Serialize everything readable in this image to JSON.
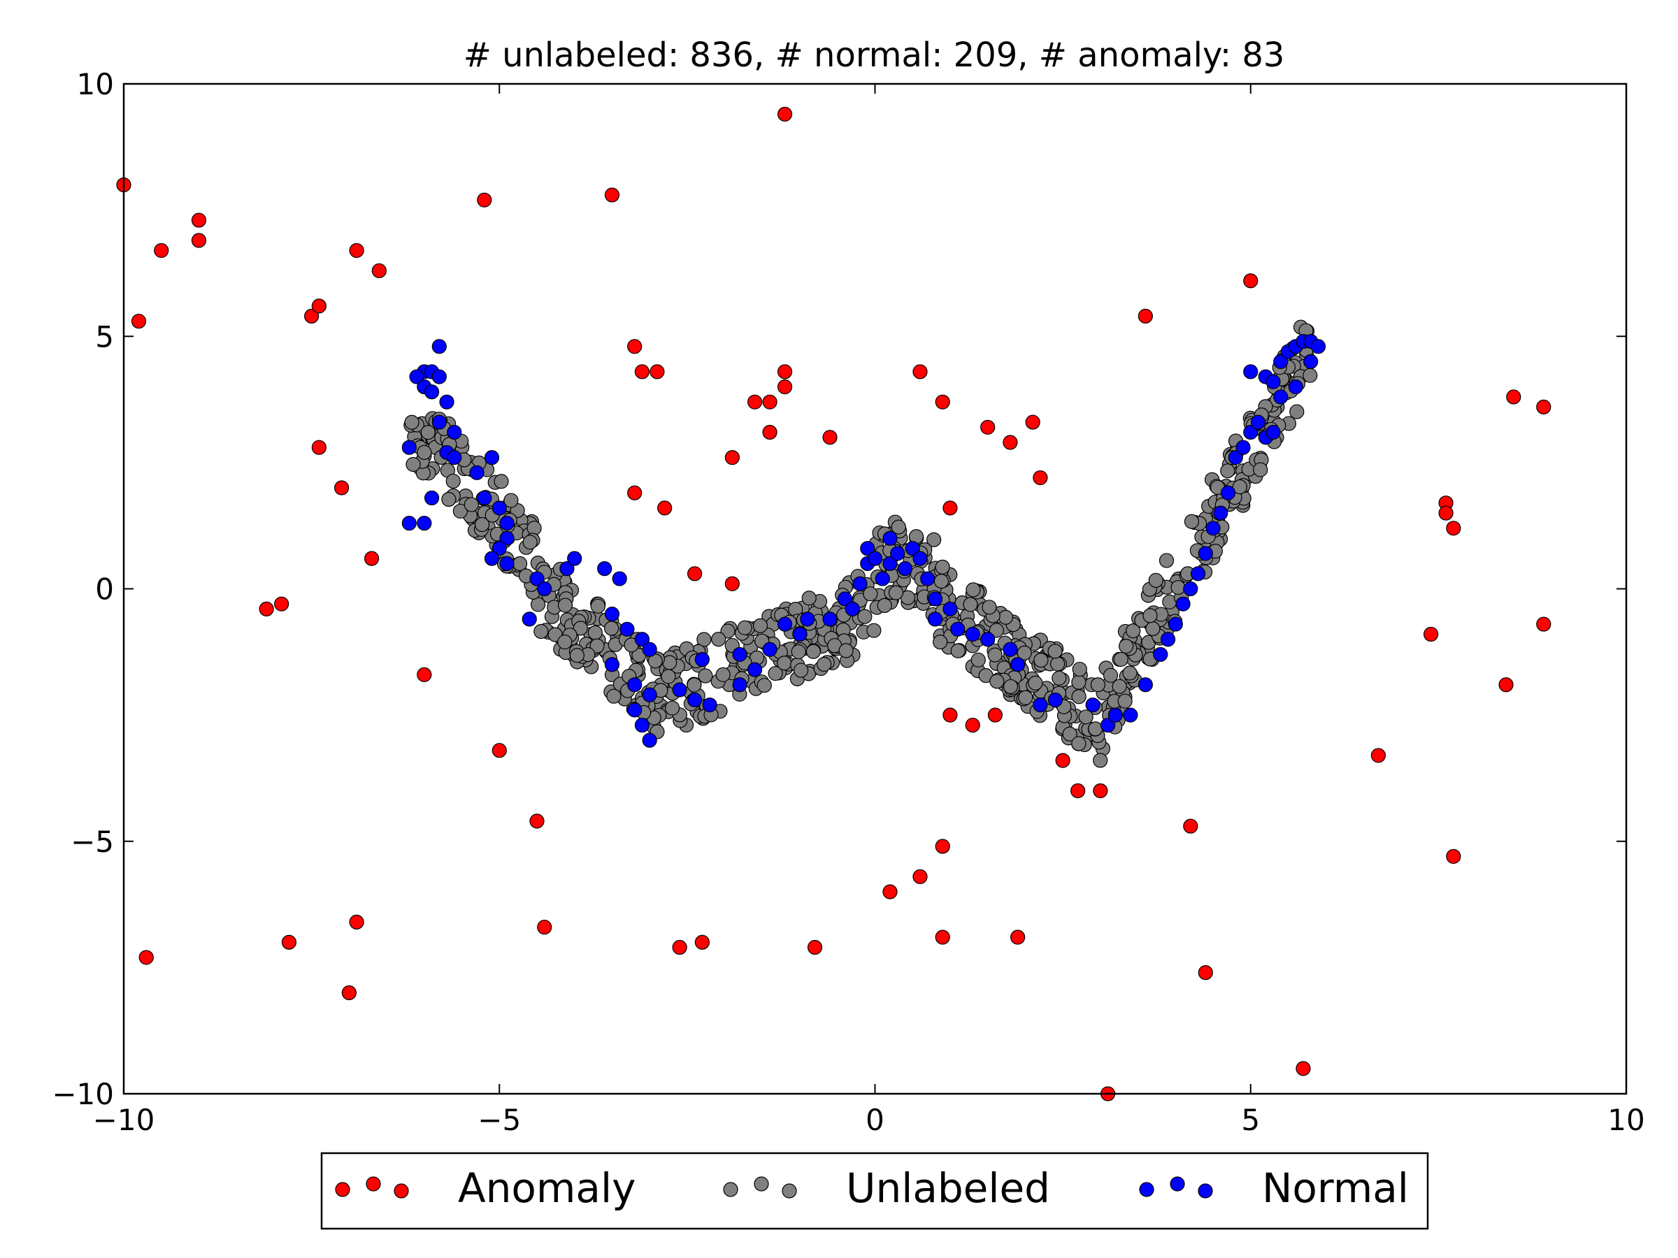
{
  "chart_data": {
    "type": "scatter",
    "title": "# unlabeled: 836, # normal: 209, # anomaly: 83",
    "xlabel": "",
    "ylabel": "",
    "xlim": [
      -10,
      10
    ],
    "ylim": [
      -10,
      10
    ],
    "xticks": [
      -10,
      -5,
      0,
      5,
      10
    ],
    "yticks": [
      -10,
      -5,
      0,
      5,
      10
    ],
    "xtick_labels": [
      "−10",
      "−5",
      "0",
      "5",
      "10"
    ],
    "ytick_labels": [
      "−10",
      "−5",
      "0",
      "5",
      "10"
    ],
    "grid": false,
    "legend_position": "bottom-center",
    "series": [
      {
        "name": "Anomaly",
        "color": "#ff0000",
        "points": [
          [
            -10.0,
            8.0
          ],
          [
            -9.8,
            5.3
          ],
          [
            -9.5,
            6.7
          ],
          [
            -9.7,
            -7.3
          ],
          [
            -9.0,
            7.3
          ],
          [
            -9.0,
            6.9
          ],
          [
            -7.5,
            5.4
          ],
          [
            -7.4,
            5.6
          ],
          [
            -7.4,
            2.8
          ],
          [
            -7.1,
            2.0
          ],
          [
            -6.9,
            6.7
          ],
          [
            -6.6,
            6.3
          ],
          [
            -6.7,
            0.6
          ],
          [
            -8.1,
            -0.4
          ],
          [
            -7.9,
            -0.3
          ],
          [
            -6.0,
            -1.7
          ],
          [
            -7.8,
            -7.0
          ],
          [
            -6.9,
            -6.6
          ],
          [
            -7.0,
            -8.0
          ],
          [
            -5.2,
            7.7
          ],
          [
            -3.5,
            7.8
          ],
          [
            -3.2,
            4.8
          ],
          [
            -3.1,
            4.3
          ],
          [
            -2.9,
            4.3
          ],
          [
            -3.2,
            1.9
          ],
          [
            -2.8,
            1.6
          ],
          [
            -2.4,
            0.3
          ],
          [
            -1.9,
            0.1
          ],
          [
            -1.9,
            2.6
          ],
          [
            -1.6,
            3.7
          ],
          [
            -1.4,
            3.7
          ],
          [
            -1.4,
            3.1
          ],
          [
            -1.2,
            4.0
          ],
          [
            -1.2,
            4.3
          ],
          [
            -1.2,
            9.4
          ],
          [
            -0.6,
            3.0
          ],
          [
            -5.0,
            -3.2
          ],
          [
            -4.5,
            -4.6
          ],
          [
            -4.4,
            -6.7
          ],
          [
            -2.6,
            -7.1
          ],
          [
            -2.3,
            -7.0
          ],
          [
            -0.8,
            -7.1
          ],
          [
            0.6,
            4.3
          ],
          [
            0.9,
            3.7
          ],
          [
            1.0,
            1.6
          ],
          [
            1.5,
            3.2
          ],
          [
            1.8,
            2.9
          ],
          [
            2.1,
            3.3
          ],
          [
            2.2,
            2.2
          ],
          [
            1.0,
            -2.5
          ],
          [
            1.3,
            -2.7
          ],
          [
            1.6,
            -2.5
          ],
          [
            2.5,
            -3.4
          ],
          [
            2.7,
            -4.0
          ],
          [
            3.0,
            -4.0
          ],
          [
            0.9,
            -5.1
          ],
          [
            0.6,
            -5.7
          ],
          [
            0.2,
            -6.0
          ],
          [
            0.9,
            -6.9
          ],
          [
            1.9,
            -6.9
          ],
          [
            3.1,
            -10.0
          ],
          [
            3.6,
            5.4
          ],
          [
            5.0,
            6.1
          ],
          [
            4.2,
            -4.7
          ],
          [
            4.4,
            -7.6
          ],
          [
            5.7,
            -9.5
          ],
          [
            6.7,
            -3.3
          ],
          [
            7.4,
            -0.9
          ],
          [
            7.6,
            1.7
          ],
          [
            7.6,
            1.5
          ],
          [
            7.7,
            1.2
          ],
          [
            7.7,
            -5.3
          ],
          [
            8.4,
            -1.9
          ],
          [
            8.5,
            3.8
          ],
          [
            8.9,
            3.6
          ],
          [
            8.9,
            -0.7
          ]
        ]
      },
      {
        "name": "Unlabeled",
        "color": "#808080",
        "points": []
      },
      {
        "name": "Normal",
        "color": "#0000ff",
        "points": [
          [
            -5.8,
            4.8
          ],
          [
            -6.0,
            4.3
          ],
          [
            -5.9,
            4.3
          ],
          [
            -6.1,
            4.2
          ],
          [
            -5.8,
            4.2
          ],
          [
            -6.0,
            4.0
          ],
          [
            -5.9,
            3.9
          ],
          [
            -5.7,
            3.7
          ],
          [
            -5.8,
            3.3
          ],
          [
            -5.6,
            3.1
          ],
          [
            -6.2,
            2.8
          ],
          [
            -5.7,
            2.7
          ],
          [
            -5.6,
            2.6
          ],
          [
            -5.1,
            2.6
          ],
          [
            -5.3,
            2.3
          ],
          [
            -5.9,
            1.8
          ],
          [
            -6.2,
            1.3
          ],
          [
            -6.0,
            1.3
          ],
          [
            -5.2,
            1.8
          ],
          [
            -5.0,
            1.6
          ],
          [
            -4.9,
            1.3
          ],
          [
            -4.9,
            1.0
          ],
          [
            -5.0,
            0.8
          ],
          [
            -5.1,
            0.6
          ],
          [
            -4.9,
            0.5
          ],
          [
            -4.5,
            0.2
          ],
          [
            -4.4,
            0.0
          ],
          [
            -4.6,
            -0.6
          ],
          [
            -4.1,
            0.4
          ],
          [
            -4.0,
            0.6
          ],
          [
            -3.6,
            0.4
          ],
          [
            -3.4,
            0.2
          ],
          [
            -3.5,
            -0.5
          ],
          [
            -3.3,
            -0.8
          ],
          [
            -3.1,
            -1.0
          ],
          [
            -3.0,
            -1.2
          ],
          [
            -3.5,
            -1.5
          ],
          [
            -3.2,
            -1.9
          ],
          [
            -3.0,
            -2.1
          ],
          [
            -3.2,
            -2.4
          ],
          [
            -3.1,
            -2.7
          ],
          [
            -3.0,
            -3.0
          ],
          [
            -2.6,
            -2.0
          ],
          [
            -2.4,
            -2.2
          ],
          [
            -2.2,
            -2.3
          ],
          [
            -2.3,
            -1.4
          ],
          [
            -1.8,
            -1.9
          ],
          [
            -1.8,
            -1.3
          ],
          [
            -1.6,
            -1.6
          ],
          [
            -1.4,
            -1.2
          ],
          [
            -1.2,
            -0.7
          ],
          [
            -1.0,
            -0.9
          ],
          [
            -0.9,
            -0.6
          ],
          [
            -0.6,
            -0.6
          ],
          [
            -0.4,
            -0.2
          ],
          [
            -0.3,
            -0.4
          ],
          [
            -0.2,
            0.1
          ],
          [
            -0.1,
            0.5
          ],
          [
            -0.1,
            0.8
          ],
          [
            0.0,
            0.6
          ],
          [
            0.1,
            0.2
          ],
          [
            0.2,
            0.5
          ],
          [
            0.2,
            1.0
          ],
          [
            0.3,
            0.7
          ],
          [
            0.4,
            0.4
          ],
          [
            0.5,
            0.8
          ],
          [
            0.6,
            0.6
          ],
          [
            0.7,
            0.2
          ],
          [
            0.8,
            -0.2
          ],
          [
            0.8,
            -0.6
          ],
          [
            1.0,
            -0.4
          ],
          [
            1.1,
            -0.8
          ],
          [
            1.3,
            -0.9
          ],
          [
            1.5,
            -1.0
          ],
          [
            1.8,
            -1.2
          ],
          [
            1.9,
            -1.5
          ],
          [
            2.2,
            -2.3
          ],
          [
            2.4,
            -2.2
          ],
          [
            2.9,
            -2.3
          ],
          [
            3.1,
            -2.7
          ],
          [
            3.2,
            -2.5
          ],
          [
            3.4,
            -2.5
          ],
          [
            3.6,
            -1.9
          ],
          [
            3.8,
            -1.3
          ],
          [
            3.9,
            -1.0
          ],
          [
            4.0,
            -0.7
          ],
          [
            4.1,
            -0.3
          ],
          [
            4.2,
            0.0
          ],
          [
            4.3,
            0.3
          ],
          [
            4.4,
            0.7
          ],
          [
            4.5,
            1.2
          ],
          [
            4.6,
            1.5
          ],
          [
            4.7,
            1.9
          ],
          [
            4.8,
            2.6
          ],
          [
            4.9,
            2.8
          ],
          [
            5.0,
            3.1
          ],
          [
            5.1,
            3.3
          ],
          [
            5.2,
            3.0
          ],
          [
            5.3,
            3.1
          ],
          [
            5.0,
            4.3
          ],
          [
            5.2,
            4.2
          ],
          [
            5.3,
            4.1
          ],
          [
            5.4,
            4.5
          ],
          [
            5.5,
            4.7
          ],
          [
            5.6,
            4.8
          ],
          [
            5.7,
            4.9
          ],
          [
            5.8,
            4.9
          ],
          [
            5.9,
            4.8
          ],
          [
            5.8,
            4.5
          ],
          [
            5.6,
            4.0
          ],
          [
            5.4,
            3.8
          ]
        ]
      }
    ],
    "legend": [
      "Anomaly",
      "Unlabeled",
      "Normal"
    ]
  }
}
